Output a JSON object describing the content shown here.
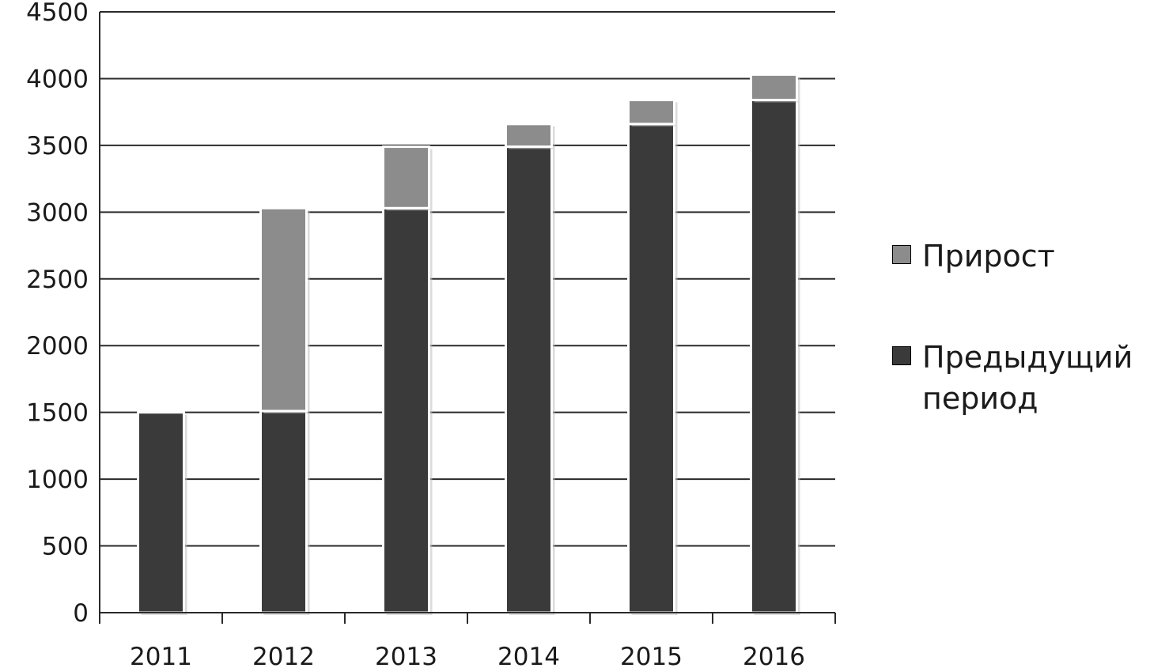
{
  "chart_data": {
    "type": "bar",
    "stacked": true,
    "categories": [
      "2011",
      "2012",
      "2013",
      "2014",
      "2015",
      "2016"
    ],
    "series": [
      {
        "name": "Предыдущий период",
        "values": [
          1500,
          1510,
          3030,
          3490,
          3660,
          3840
        ],
        "color": "#3a3a3a"
      },
      {
        "name": "Прирост",
        "values": [
          0,
          1520,
          460,
          170,
          180,
          190
        ],
        "color": "#8c8c8c"
      }
    ],
    "ylim": [
      0,
      4500
    ],
    "yticks": [
      "0",
      "500",
      "1000",
      "1500",
      "2000",
      "2500",
      "3000",
      "3500",
      "4000",
      "4500"
    ],
    "grid": true,
    "legend_position": "right",
    "title": "",
    "xlabel": "",
    "ylabel": ""
  }
}
